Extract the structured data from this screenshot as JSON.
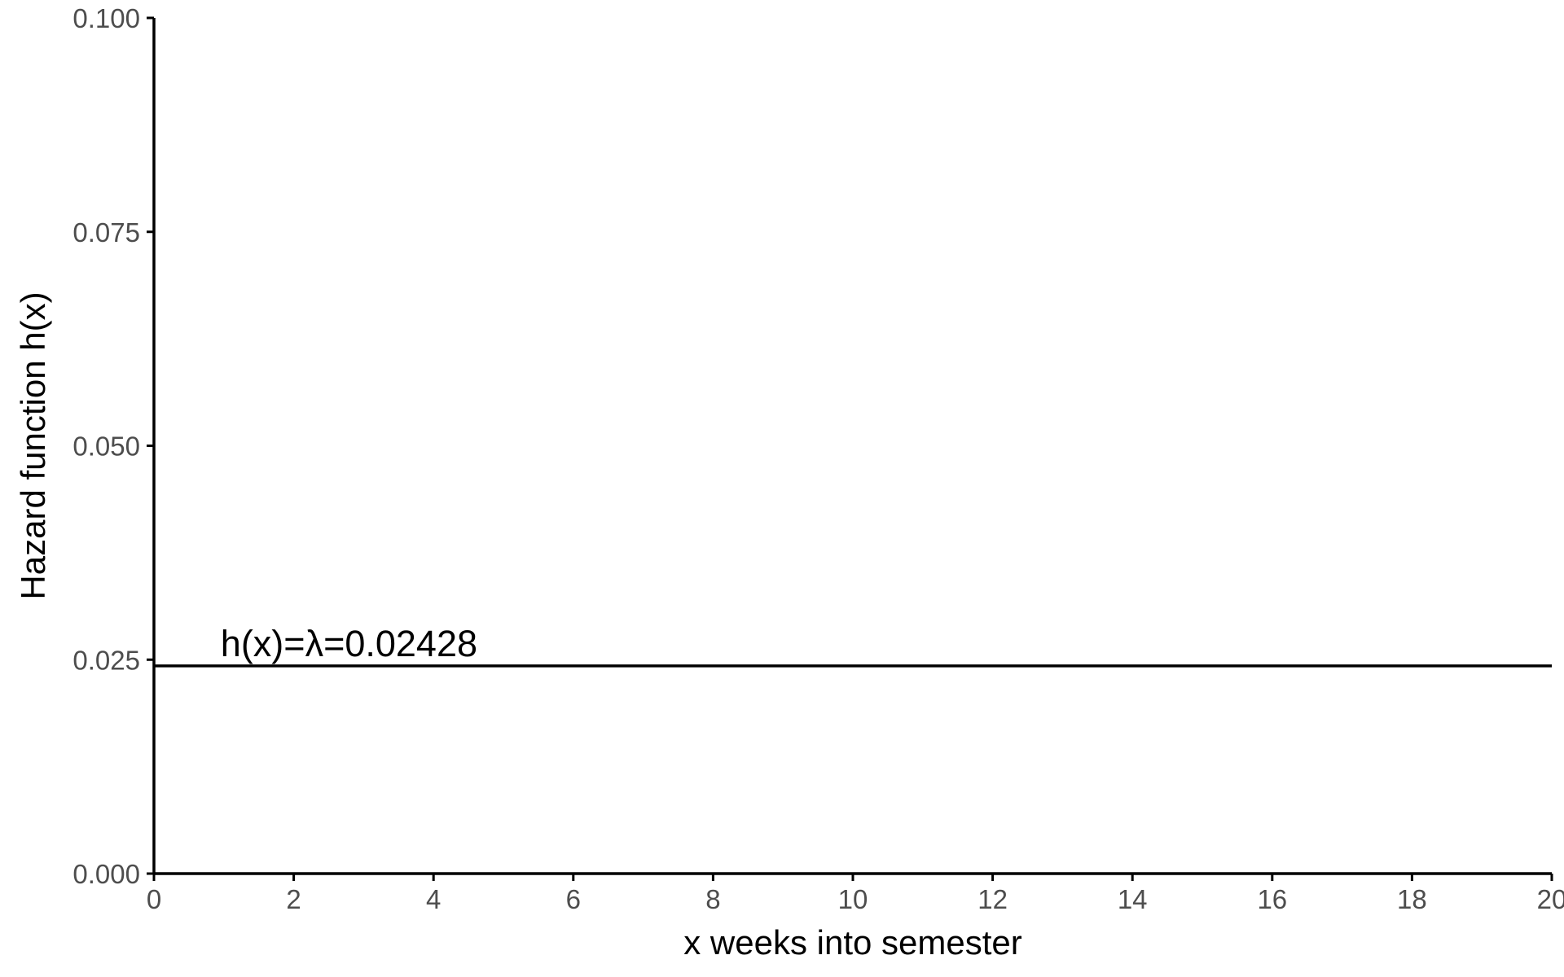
{
  "chart_data": {
    "type": "line",
    "title": "",
    "xlabel": "x weeks into semester",
    "ylabel": "Hazard function h(x)",
    "xlim": [
      0,
      20
    ],
    "ylim": [
      0,
      0.1
    ],
    "x_ticks": [
      0,
      2,
      4,
      6,
      8,
      10,
      12,
      14,
      16,
      18,
      20
    ],
    "x_tick_labels": [
      "0",
      "2",
      "4",
      "6",
      "8",
      "10",
      "12",
      "14",
      "16",
      "18",
      "20"
    ],
    "y_ticks": [
      0,
      0.025,
      0.05,
      0.075,
      0.1
    ],
    "y_tick_labels": [
      "0.000",
      "0.025",
      "0.050",
      "0.075",
      "0.100"
    ],
    "grid": false,
    "legend": "none",
    "series": [
      {
        "x": [
          0,
          20
        ],
        "y": [
          0.02428,
          0.02428
        ],
        "color": "#000000"
      }
    ],
    "annotations": [
      {
        "text": "h(x)=λ=0.02428",
        "x": 1,
        "y": 0.02428
      }
    ]
  }
}
